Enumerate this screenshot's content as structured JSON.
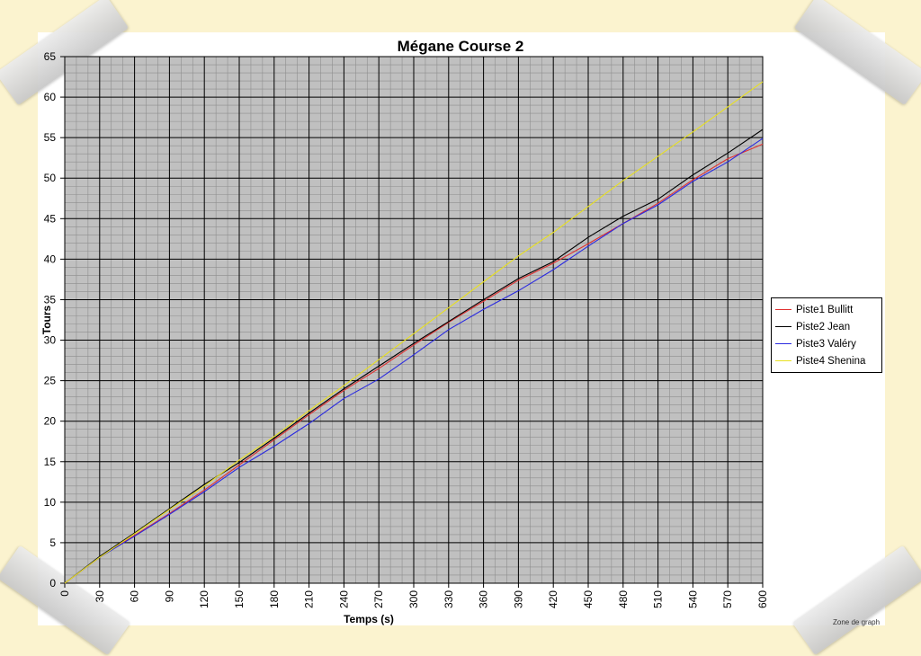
{
  "chart_data": {
    "type": "line",
    "title": "Mégane Course 2",
    "xlabel": "Temps (s)",
    "ylabel": "Tours",
    "xlim": [
      0,
      600
    ],
    "ylim": [
      0,
      65
    ],
    "xticks": [
      0,
      30,
      60,
      90,
      120,
      150,
      180,
      210,
      240,
      270,
      300,
      330,
      360,
      390,
      420,
      450,
      480,
      510,
      540,
      570,
      600
    ],
    "yticks": [
      0,
      5,
      10,
      15,
      20,
      25,
      30,
      35,
      40,
      45,
      50,
      55,
      60,
      65
    ],
    "grid": true,
    "legend_position": "right",
    "x": [
      0,
      30,
      60,
      90,
      120,
      150,
      180,
      210,
      240,
      270,
      300,
      330,
      360,
      390,
      420,
      450,
      480,
      510,
      540,
      570,
      600
    ],
    "series": [
      {
        "name": "Piste1 Bullitt",
        "color": "#e03030",
        "values": [
          0,
          3.2,
          5.9,
          8.6,
          11.5,
          14.6,
          17.7,
          20.8,
          23.8,
          26.5,
          29.4,
          32.2,
          34.8,
          37.4,
          39.5,
          41.9,
          44.4,
          46.9,
          49.8,
          52.4,
          54.2
        ]
      },
      {
        "name": "Piste2 Jean",
        "color": "#000000",
        "values": [
          0,
          3.3,
          6.2,
          9.2,
          12.2,
          14.9,
          17.9,
          21.0,
          24.0,
          26.8,
          29.6,
          32.3,
          35.0,
          37.6,
          39.7,
          42.7,
          45.3,
          47.4,
          50.4,
          53.1,
          56.0
        ]
      },
      {
        "name": "Piste3 Valéry",
        "color": "#2a2ae0",
        "values": [
          0,
          3.2,
          5.8,
          8.5,
          11.3,
          14.3,
          16.9,
          19.7,
          22.8,
          25.2,
          28.2,
          31.3,
          33.8,
          36.1,
          38.7,
          41.6,
          44.4,
          46.7,
          49.6,
          52.0,
          54.9
        ]
      },
      {
        "name": "Piste4 Shenina",
        "color": "#e8e020",
        "values": [
          0,
          3.2,
          6.1,
          9.1,
          12.0,
          15.2,
          18.1,
          21.3,
          24.4,
          27.6,
          30.8,
          34.0,
          37.2,
          40.4,
          43.3,
          46.5,
          49.7,
          52.7,
          55.7,
          58.8,
          61.9
        ]
      }
    ]
  },
  "footer": {
    "zone_label": "Zone de graph"
  }
}
